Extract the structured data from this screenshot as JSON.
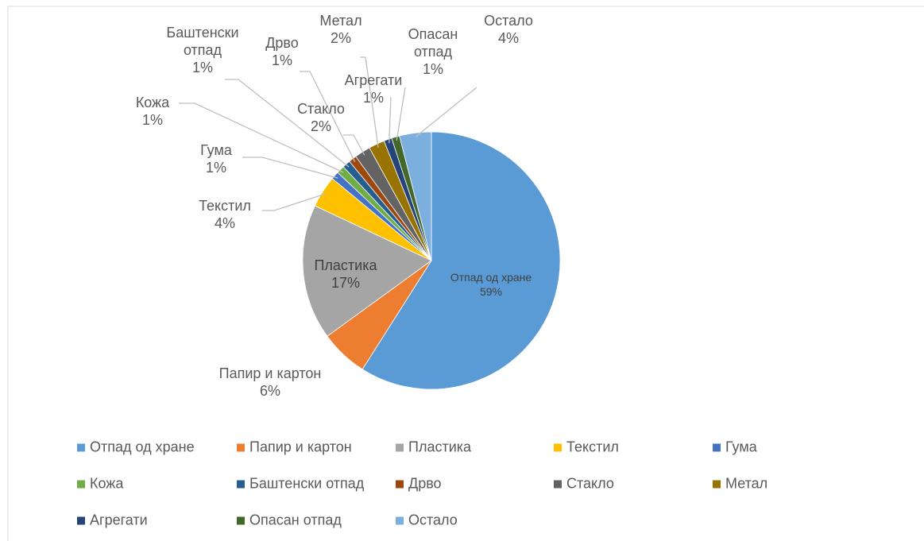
{
  "chart_data": {
    "type": "pie",
    "categories": [
      "Отпад од хране",
      "Папир и картон",
      "Пластика",
      "Текстил",
      "Гума",
      "Кожа",
      "Баштенски отпад",
      "Дрво",
      "Стакло",
      "Метал",
      "Агрегати",
      "Опасан отпад",
      "Остало"
    ],
    "values": [
      59,
      6,
      17,
      4,
      1,
      1,
      1,
      1,
      2,
      2,
      1,
      1,
      4
    ],
    "value_labels": [
      "59%",
      "6%",
      "17%",
      "4%",
      "1%",
      "1%",
      "1%",
      "1%",
      "2%",
      "2%",
      "1%",
      "1%",
      "4%"
    ],
    "colors": [
      "#5b9bd5",
      "#ed7d31",
      "#a5a5a5",
      "#ffc000",
      "#4472c4",
      "#70ad47",
      "#255e91",
      "#9e480e",
      "#636363",
      "#997300",
      "#264478",
      "#43682b",
      "#7cafdd"
    ],
    "legend": "bottom"
  }
}
